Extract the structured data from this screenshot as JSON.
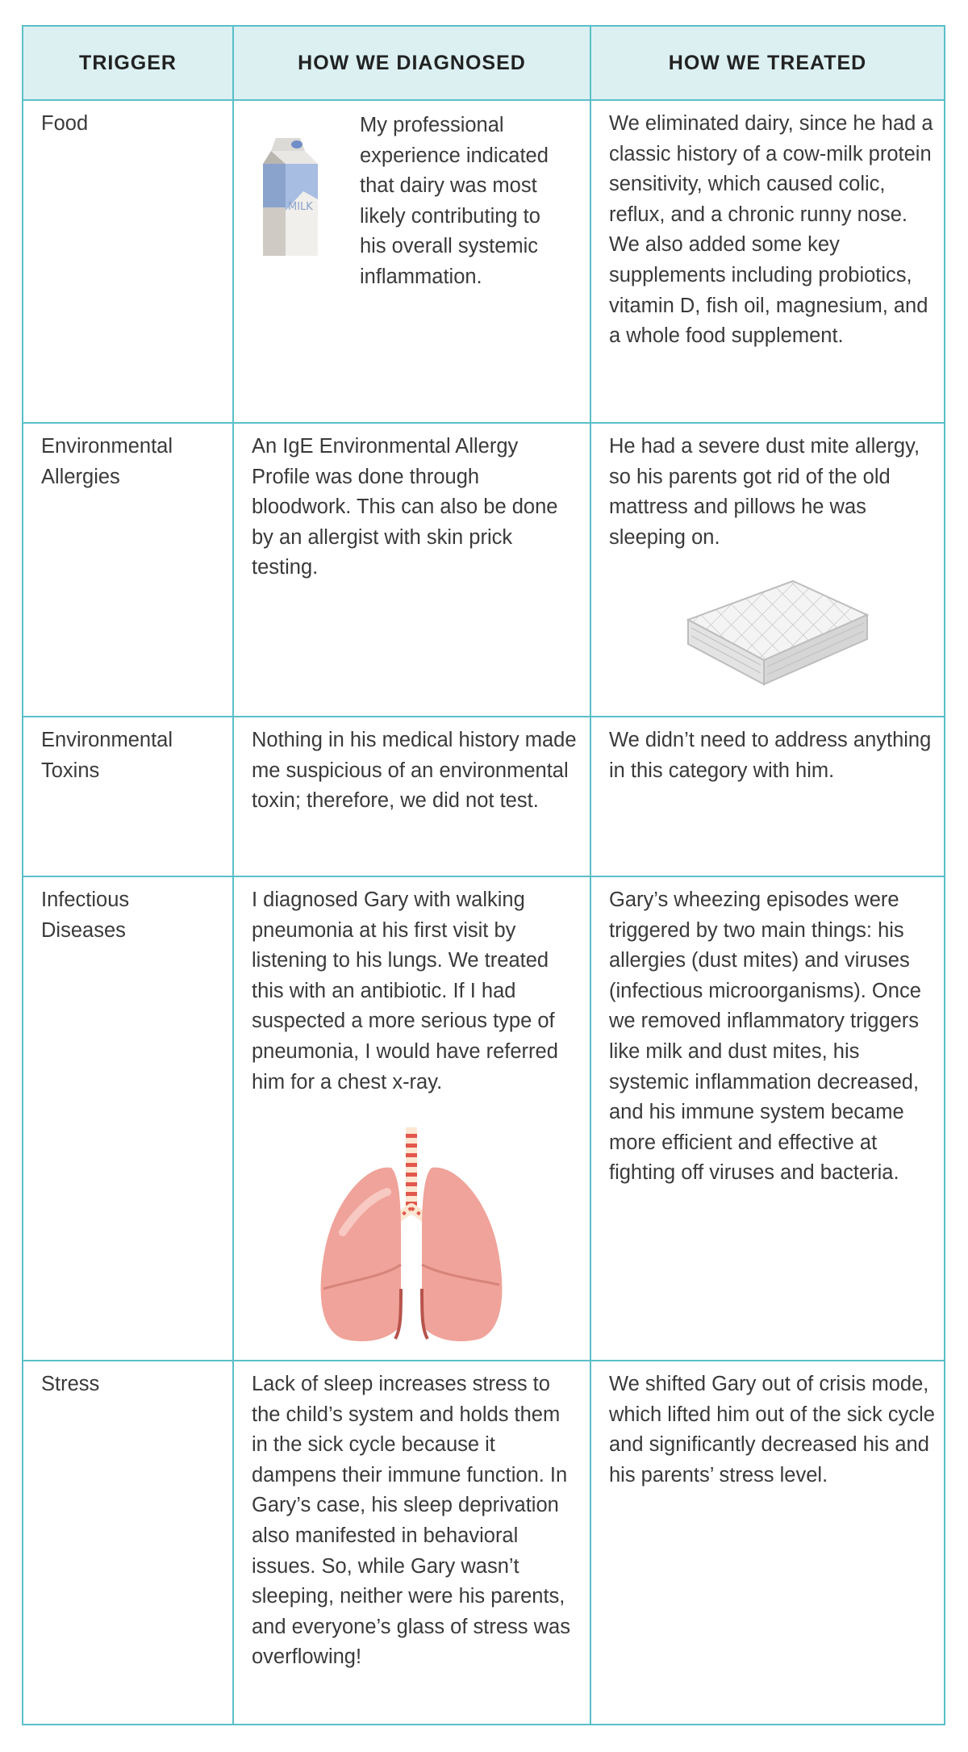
{
  "headers": {
    "trigger": "TRIGGER",
    "diagnosed": "HOW WE DIAGNOSED",
    "treated": "HOW WE TREATED"
  },
  "rows": [
    {
      "trigger": "Food",
      "diagnosed": "My professional experience indicated that dairy was most likely contributing to his overall systemic inflammation.",
      "treated": "We eliminated dairy, since he had a classic history of a cow-milk protein sensitivity, which caused colic, reflux, and a chronic runny nose. We also added some key supplements including probiotics, vitamin D, fish oil, magnesium, and a whole food supplement.",
      "image_label": "MILK",
      "icon": "milk-carton-icon"
    },
    {
      "trigger": "Environmental Allergies",
      "diagnosed": "An IgE Environmental Allergy Profile was done through bloodwork. This can also be done by an allergist with skin prick testing.",
      "treated": "He had a severe dust mite allergy, so his parents got rid of the old mattress and pillows he was sleeping on.",
      "icon": "mattress-icon"
    },
    {
      "trigger": "Environmental Toxins",
      "diagnosed": "Nothing in his medical history made me suspicious of an environmental toxin; therefore, we did not test.",
      "treated": "We didn’t need to address anything in this category with him."
    },
    {
      "trigger": "Infectious Diseases",
      "diagnosed": "I diagnosed Gary with walking pneumonia at his first visit by listening to his lungs. We treated this with an antibiotic. If I had suspected a more serious type of pneumonia, I would have referred him for a chest x-ray.",
      "treated": "Gary’s wheezing episodes were triggered by two main things: his allergies (dust mites) and viruses (infectious microorganisms). Once we removed inflammatory triggers like milk and dust mites, his systemic inflammation decreased, and his immune system became more efficient and effective at fighting off viruses and bacteria.",
      "icon": "lungs-icon"
    },
    {
      "trigger": "Stress",
      "diagnosed": "Lack of sleep increases stress to the child’s system and holds them in the sick cycle because it dampens their immune function. In Gary’s case, his sleep deprivation also manifested in behavioral issues. So, while Gary wasn’t sleeping, neither were his parents, and everyone’s glass of stress was overflowing!",
      "treated": "We shifted Gary out of crisis mode, which lifted him out of the sick cycle and significantly decreased his and his parents’ stress level."
    }
  ],
  "colors": {
    "border": "#5bbfc9",
    "header_bg": "#dcf0f2",
    "text": "#3a3a3a"
  }
}
